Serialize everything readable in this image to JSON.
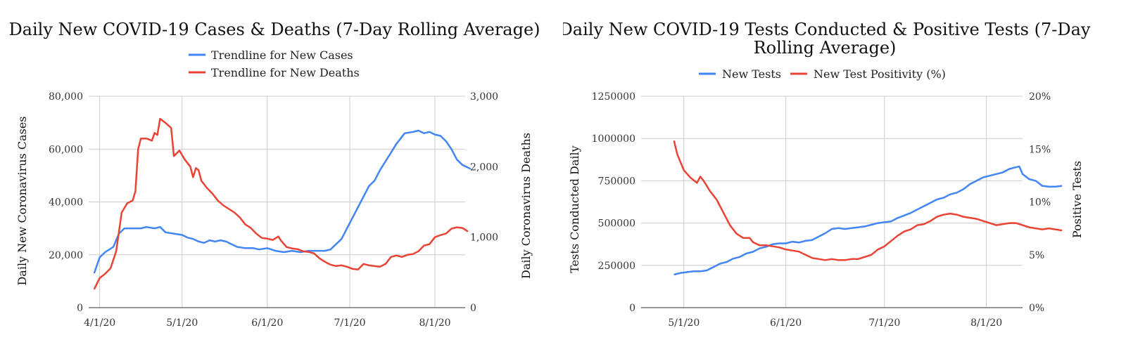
{
  "chart_data": [
    {
      "type": "line",
      "title": "Daily New COVID-19 Cases & Deaths (7-Day Rolling Average)",
      "ylabel_left": "Daily New Coronavirus Cases",
      "ylabel_right": "Daily Coronavirus Deaths",
      "xlabel": "",
      "x_ticks": [
        "4/1/20",
        "5/1/20",
        "6/1/20",
        "7/1/20",
        "8/1/20"
      ],
      "y_left_ticks": [
        "0",
        "20,000",
        "40,000",
        "60,000",
        "80,000"
      ],
      "y_right_ticks": [
        "0",
        "1,000",
        "2,000",
        "3,000"
      ],
      "ylim_left": [
        0,
        80000
      ],
      "ylim_right": [
        0,
        3000
      ],
      "xlim_days": [
        -4,
        133
      ],
      "grid": true,
      "legend_position": "top",
      "series": [
        {
          "name": "Trendline for New Cases",
          "axis": "left",
          "color": "#4285f4",
          "points": [
            [
              -2,
              13000
            ],
            [
              0,
              19000
            ],
            [
              2,
              21000
            ],
            [
              5,
              23000
            ],
            [
              7,
              28000
            ],
            [
              9,
              30000
            ],
            [
              12,
              30000
            ],
            [
              15,
              30000
            ],
            [
              17,
              30500
            ],
            [
              20,
              30000
            ],
            [
              22,
              30500
            ],
            [
              24,
              28500
            ],
            [
              27,
              28000
            ],
            [
              30,
              27500
            ],
            [
              32,
              26500
            ],
            [
              34,
              26000
            ],
            [
              36,
              25000
            ],
            [
              38,
              24500
            ],
            [
              40,
              25500
            ],
            [
              42,
              25000
            ],
            [
              44,
              25500
            ],
            [
              46,
              25000
            ],
            [
              48,
              24000
            ],
            [
              50,
              23000
            ],
            [
              53,
              22500
            ],
            [
              56,
              22500
            ],
            [
              58,
              22000
            ],
            [
              61,
              22500
            ],
            [
              64,
              21500
            ],
            [
              67,
              21000
            ],
            [
              70,
              21500
            ],
            [
              73,
              21000
            ],
            [
              76,
              21500
            ],
            [
              79,
              21500
            ],
            [
              82,
              21500
            ],
            [
              84,
              22000
            ],
            [
              86,
              24000
            ],
            [
              88,
              26000
            ],
            [
              90,
              30000
            ],
            [
              92,
              34000
            ],
            [
              94,
              38000
            ],
            [
              96,
              42000
            ],
            [
              98,
              46000
            ],
            [
              100,
              48000
            ],
            [
              102,
              52000
            ],
            [
              105,
              57000
            ],
            [
              108,
              62000
            ],
            [
              111,
              66000
            ],
            [
              114,
              66500
            ],
            [
              116,
              67000
            ],
            [
              118,
              66000
            ],
            [
              120,
              66500
            ],
            [
              122,
              65500
            ],
            [
              124,
              65000
            ],
            [
              126,
              63000
            ],
            [
              128,
              60000
            ],
            [
              130,
              56000
            ],
            [
              132,
              54000
            ],
            [
              134,
              53000
            ],
            [
              135,
              52500
            ]
          ]
        },
        {
          "name": "Trendline for New Deaths",
          "axis": "right",
          "color": "#ea4335",
          "points": [
            [
              -2,
              260
            ],
            [
              0,
              420
            ],
            [
              2,
              480
            ],
            [
              4,
              560
            ],
            [
              6,
              800
            ],
            [
              8,
              1350
            ],
            [
              10,
              1480
            ],
            [
              12,
              1520
            ],
            [
              13,
              1650
            ],
            [
              14,
              2250
            ],
            [
              15,
              2400
            ],
            [
              17,
              2400
            ],
            [
              19,
              2370
            ],
            [
              20,
              2480
            ],
            [
              21,
              2450
            ],
            [
              22,
              2680
            ],
            [
              24,
              2620
            ],
            [
              26,
              2550
            ],
            [
              27,
              2150
            ],
            [
              29,
              2230
            ],
            [
              31,
              2100
            ],
            [
              33,
              2000
            ],
            [
              34,
              1850
            ],
            [
              35,
              1980
            ],
            [
              36,
              1950
            ],
            [
              37,
              1800
            ],
            [
              39,
              1700
            ],
            [
              41,
              1620
            ],
            [
              43,
              1520
            ],
            [
              45,
              1450
            ],
            [
              47,
              1400
            ],
            [
              49,
              1350
            ],
            [
              51,
              1280
            ],
            [
              53,
              1180
            ],
            [
              55,
              1130
            ],
            [
              57,
              1050
            ],
            [
              59,
              990
            ],
            [
              61,
              980
            ],
            [
              63,
              960
            ],
            [
              65,
              1010
            ],
            [
              66,
              950
            ],
            [
              68,
              860
            ],
            [
              70,
              840
            ],
            [
              72,
              830
            ],
            [
              74,
              800
            ],
            [
              76,
              790
            ],
            [
              78,
              770
            ],
            [
              80,
              700
            ],
            [
              82,
              650
            ],
            [
              84,
              610
            ],
            [
              86,
              590
            ],
            [
              88,
              600
            ],
            [
              90,
              580
            ],
            [
              92,
              550
            ],
            [
              94,
              540
            ],
            [
              96,
              620
            ],
            [
              98,
              600
            ],
            [
              100,
              590
            ],
            [
              102,
              580
            ],
            [
              104,
              620
            ],
            [
              106,
              720
            ],
            [
              108,
              740
            ],
            [
              110,
              720
            ],
            [
              112,
              750
            ],
            [
              114,
              760
            ],
            [
              116,
              800
            ],
            [
              118,
              880
            ],
            [
              120,
              900
            ],
            [
              122,
              1000
            ],
            [
              124,
              1030
            ],
            [
              126,
              1050
            ],
            [
              128,
              1120
            ],
            [
              130,
              1140
            ],
            [
              132,
              1130
            ],
            [
              134,
              1080
            ]
          ]
        }
      ]
    },
    {
      "type": "line",
      "title": "Daily New COVID-19 Tests Conducted & Positive Tests (7-Day Rolling Average)",
      "ylabel_left": "Tests Conducted Daily",
      "ylabel_right": "Positive Tests",
      "xlabel": "",
      "x_ticks": [
        "5/1/20",
        "6/1/20",
        "7/1/20",
        "8/1/20"
      ],
      "y_left_ticks": [
        "0",
        "250000",
        "500000",
        "750000",
        "1000000",
        "1250000"
      ],
      "y_right_ticks": [
        "0%",
        "5%",
        "10%",
        "15%",
        "20%"
      ],
      "ylim_left": [
        0,
        1250000
      ],
      "ylim_right": [
        0,
        20
      ],
      "xlim_days": [
        17,
        133
      ],
      "grid": true,
      "legend_position": "top",
      "series": [
        {
          "name": "New Tests",
          "axis": "left",
          "color": "#4285f4",
          "points": [
            [
              27,
              195000
            ],
            [
              29,
              205000
            ],
            [
              31,
              210000
            ],
            [
              33,
              215000
            ],
            [
              35,
              215000
            ],
            [
              37,
              220000
            ],
            [
              39,
              240000
            ],
            [
              41,
              260000
            ],
            [
              43,
              270000
            ],
            [
              45,
              290000
            ],
            [
              47,
              300000
            ],
            [
              49,
              320000
            ],
            [
              51,
              330000
            ],
            [
              53,
              350000
            ],
            [
              55,
              360000
            ],
            [
              57,
              375000
            ],
            [
              59,
              380000
            ],
            [
              61,
              380000
            ],
            [
              63,
              390000
            ],
            [
              65,
              385000
            ],
            [
              67,
              395000
            ],
            [
              69,
              400000
            ],
            [
              71,
              420000
            ],
            [
              73,
              440000
            ],
            [
              75,
              465000
            ],
            [
              77,
              470000
            ],
            [
              79,
              465000
            ],
            [
              81,
              470000
            ],
            [
              83,
              475000
            ],
            [
              85,
              480000
            ],
            [
              87,
              490000
            ],
            [
              89,
              500000
            ],
            [
              91,
              505000
            ],
            [
              93,
              510000
            ],
            [
              95,
              530000
            ],
            [
              97,
              545000
            ],
            [
              99,
              560000
            ],
            [
              101,
              580000
            ],
            [
              103,
              600000
            ],
            [
              105,
              620000
            ],
            [
              107,
              640000
            ],
            [
              109,
              650000
            ],
            [
              111,
              670000
            ],
            [
              113,
              680000
            ],
            [
              115,
              700000
            ],
            [
              117,
              730000
            ],
            [
              119,
              750000
            ],
            [
              121,
              770000
            ],
            [
              123,
              780000
            ],
            [
              125,
              790000
            ],
            [
              127,
              800000
            ],
            [
              129,
              820000
            ],
            [
              131,
              830000
            ],
            [
              132,
              835000
            ],
            [
              133,
              790000
            ],
            [
              135,
              760000
            ],
            [
              137,
              750000
            ],
            [
              139,
              720000
            ],
            [
              141,
              715000
            ],
            [
              143,
              715000
            ],
            [
              145,
              720000
            ]
          ]
        },
        {
          "name": "New Test Positivity (%)",
          "axis": "right",
          "color": "#ea4335",
          "points": [
            [
              27,
              15.8
            ],
            [
              28,
              14.5
            ],
            [
              30,
              13.0
            ],
            [
              32,
              12.3
            ],
            [
              34,
              11.8
            ],
            [
              35,
              12.4
            ],
            [
              36,
              12.0
            ],
            [
              37,
              11.5
            ],
            [
              38,
              11.0
            ],
            [
              40,
              10.2
            ],
            [
              42,
              9.0
            ],
            [
              44,
              7.8
            ],
            [
              46,
              7.0
            ],
            [
              48,
              6.6
            ],
            [
              50,
              6.6
            ],
            [
              51,
              6.2
            ],
            [
              53,
              5.9
            ],
            [
              55,
              5.9
            ],
            [
              57,
              5.8
            ],
            [
              59,
              5.7
            ],
            [
              61,
              5.5
            ],
            [
              63,
              5.4
            ],
            [
              65,
              5.3
            ],
            [
              67,
              5.0
            ],
            [
              69,
              4.7
            ],
            [
              71,
              4.6
            ],
            [
              73,
              4.5
            ],
            [
              75,
              4.6
            ],
            [
              77,
              4.5
            ],
            [
              79,
              4.5
            ],
            [
              81,
              4.6
            ],
            [
              83,
              4.6
            ],
            [
              85,
              4.8
            ],
            [
              87,
              5.0
            ],
            [
              89,
              5.5
            ],
            [
              91,
              5.8
            ],
            [
              93,
              6.3
            ],
            [
              95,
              6.8
            ],
            [
              97,
              7.2
            ],
            [
              99,
              7.4
            ],
            [
              101,
              7.8
            ],
            [
              103,
              7.9
            ],
            [
              105,
              8.2
            ],
            [
              107,
              8.6
            ],
            [
              109,
              8.8
            ],
            [
              111,
              8.9
            ],
            [
              113,
              8.8
            ],
            [
              115,
              8.6
            ],
            [
              117,
              8.5
            ],
            [
              119,
              8.4
            ],
            [
              121,
              8.2
            ],
            [
              123,
              8.0
            ],
            [
              125,
              7.8
            ],
            [
              127,
              7.9
            ],
            [
              129,
              8.0
            ],
            [
              131,
              8.0
            ],
            [
              133,
              7.8
            ],
            [
              135,
              7.6
            ],
            [
              137,
              7.5
            ],
            [
              139,
              7.4
            ],
            [
              141,
              7.5
            ],
            [
              143,
              7.4
            ],
            [
              145,
              7.3
            ]
          ]
        }
      ]
    }
  ]
}
